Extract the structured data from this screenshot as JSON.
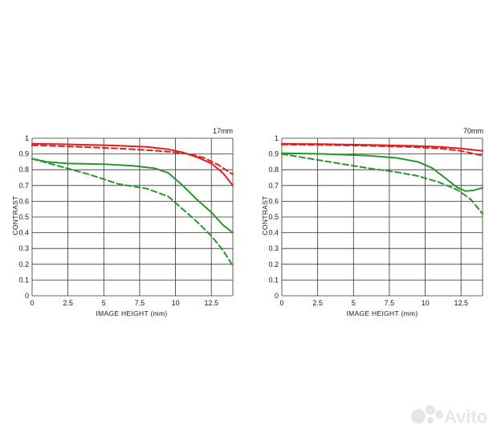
{
  "watermark": {
    "text": "Avito",
    "icon": "avito-dots-icon",
    "color": "#e6e6e6"
  },
  "colors": {
    "sagittal_red": "#e02020",
    "meridional_green": "#2a962a",
    "grid": "#333333"
  },
  "chart_data": [
    {
      "type": "line",
      "title": "17mm",
      "xlabel": "IMAGE HEIGHT (mm)",
      "ylabel": "CONTRAST",
      "xlim": [
        0,
        14
      ],
      "ylim": [
        0,
        1
      ],
      "x_ticks": [
        "0",
        "2.5",
        "5",
        "7.5",
        "10",
        "12.5"
      ],
      "y_ticks": [
        "0",
        "0.1",
        "0.2",
        "0.3",
        "0.4",
        "0.5",
        "0.6",
        "0.7",
        "0.8",
        "0.9",
        "1"
      ],
      "grid": true,
      "series": [
        {
          "color": "#e02020",
          "dash": false,
          "points": [
            [
              0,
              0.965
            ],
            [
              2,
              0.962
            ],
            [
              4,
              0.958
            ],
            [
              6,
              0.953
            ],
            [
              8,
              0.945
            ],
            [
              9.5,
              0.93
            ],
            [
              10.5,
              0.91
            ],
            [
              11.5,
              0.88
            ],
            [
              12.5,
              0.84
            ],
            [
              13.3,
              0.78
            ],
            [
              14,
              0.7
            ]
          ]
        },
        {
          "color": "#e02020",
          "dash": true,
          "points": [
            [
              0,
              0.955
            ],
            [
              2,
              0.95
            ],
            [
              4,
              0.943
            ],
            [
              6,
              0.935
            ],
            [
              8,
              0.925
            ],
            [
              9.5,
              0.915
            ],
            [
              11,
              0.9
            ],
            [
              12,
              0.875
            ],
            [
              13,
              0.83
            ],
            [
              14,
              0.77
            ]
          ]
        },
        {
          "color": "#2a962a",
          "dash": false,
          "points": [
            [
              0,
              0.87
            ],
            [
              1,
              0.85
            ],
            [
              2.5,
              0.84
            ],
            [
              5,
              0.835
            ],
            [
              7,
              0.825
            ],
            [
              8.5,
              0.81
            ],
            [
              9.5,
              0.78
            ],
            [
              10.5,
              0.7
            ],
            [
              11.5,
              0.61
            ],
            [
              12.5,
              0.53
            ],
            [
              13.3,
              0.45
            ],
            [
              14,
              0.4
            ]
          ]
        },
        {
          "color": "#2a962a",
          "dash": true,
          "points": [
            [
              0,
              0.87
            ],
            [
              2,
              0.82
            ],
            [
              4,
              0.77
            ],
            [
              6,
              0.71
            ],
            [
              8,
              0.68
            ],
            [
              9.5,
              0.63
            ],
            [
              10.5,
              0.55
            ],
            [
              11.5,
              0.47
            ],
            [
              12.5,
              0.38
            ],
            [
              13.3,
              0.29
            ],
            [
              14,
              0.19
            ]
          ]
        }
      ]
    },
    {
      "type": "line",
      "title": "70mm",
      "xlabel": "IMAGE HEIGHT (mm)",
      "ylabel": "CONTRAST",
      "xlim": [
        0,
        14
      ],
      "ylim": [
        0,
        1
      ],
      "x_ticks": [
        "0",
        "2.5",
        "5",
        "7.5",
        "10",
        "12.5"
      ],
      "y_ticks": [
        "0",
        "0.1",
        "0.2",
        "0.3",
        "0.4",
        "0.5",
        "0.6",
        "0.7",
        "0.8",
        "0.9",
        "1"
      ],
      "grid": true,
      "series": [
        {
          "color": "#e02020",
          "dash": false,
          "points": [
            [
              0,
              0.965
            ],
            [
              3,
              0.962
            ],
            [
              6,
              0.958
            ],
            [
              9,
              0.952
            ],
            [
              11,
              0.945
            ],
            [
              12.5,
              0.935
            ],
            [
              14,
              0.92
            ]
          ]
        },
        {
          "color": "#e02020",
          "dash": true,
          "points": [
            [
              0,
              0.96
            ],
            [
              3,
              0.957
            ],
            [
              6,
              0.952
            ],
            [
              9,
              0.945
            ],
            [
              11,
              0.935
            ],
            [
              12.5,
              0.92
            ],
            [
              14,
              0.89
            ]
          ]
        },
        {
          "color": "#2a962a",
          "dash": false,
          "points": [
            [
              0,
              0.905
            ],
            [
              3,
              0.9
            ],
            [
              6,
              0.89
            ],
            [
              8,
              0.875
            ],
            [
              9.5,
              0.85
            ],
            [
              10.5,
              0.81
            ],
            [
              11.5,
              0.74
            ],
            [
              12.2,
              0.69
            ],
            [
              12.8,
              0.665
            ],
            [
              13.4,
              0.67
            ],
            [
              14,
              0.685
            ]
          ]
        },
        {
          "color": "#2a962a",
          "dash": true,
          "points": [
            [
              0,
              0.9
            ],
            [
              2,
              0.87
            ],
            [
              4,
              0.84
            ],
            [
              6,
              0.81
            ],
            [
              8,
              0.785
            ],
            [
              9.5,
              0.76
            ],
            [
              11,
              0.72
            ],
            [
              12.3,
              0.67
            ],
            [
              13.2,
              0.61
            ],
            [
              14,
              0.52
            ]
          ]
        }
      ]
    }
  ]
}
